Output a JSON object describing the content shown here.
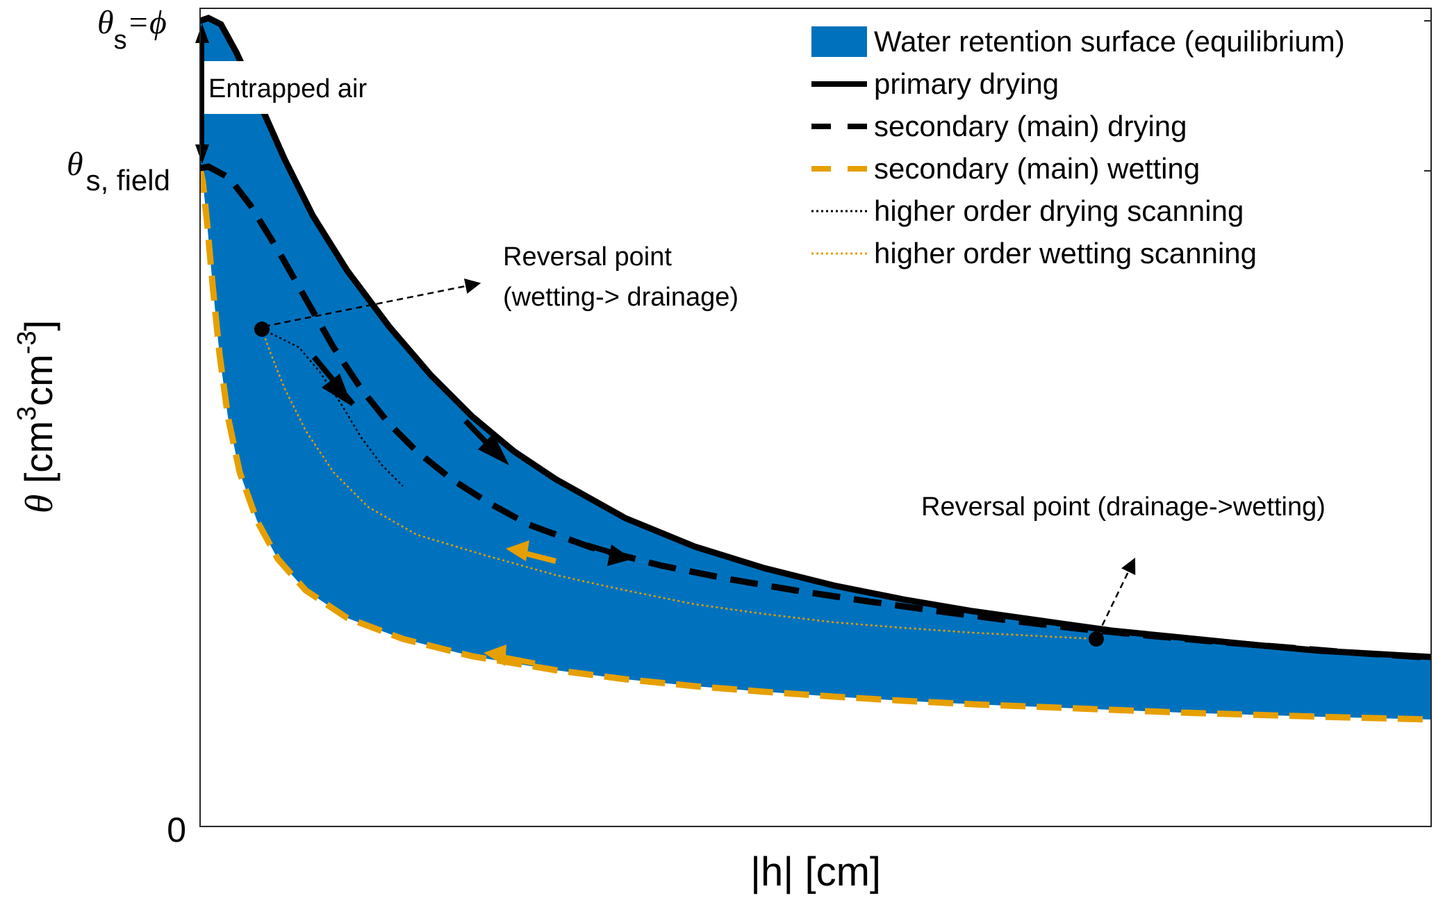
{
  "chart_data": {
    "type": "area",
    "xlabel": "|h| [cm]",
    "ylabel": {
      "symbol": "θ",
      "unit_prefix": " [cm",
      "unit_mid": "cm",
      "unit_suffix": "]",
      "exp1": "3",
      "exp2": "-3"
    },
    "y_ticks": [
      {
        "value": 0,
        "label": "0"
      }
    ],
    "y_markers": {
      "theta_s": {
        "symbol": "θ",
        "sub": "s",
        "rest": "=ϕ"
      },
      "theta_s_field": {
        "symbol": "θ",
        "sub": "s, field"
      }
    },
    "grid": false,
    "legend_placement": "top-right",
    "legend": [
      {
        "key": "surface",
        "label": "Water retention surface (equilibrium)",
        "style": "patch",
        "color": "#0072BD"
      },
      {
        "key": "primary",
        "label": "primary drying",
        "style": "solid",
        "color": "#000000"
      },
      {
        "key": "main_drying",
        "label": "secondary (main) drying",
        "style": "dashed",
        "color": "#000000"
      },
      {
        "key": "main_wetting",
        "label": "secondary (main) wetting",
        "style": "dashed",
        "color": "#E69F00"
      },
      {
        "key": "scan_drying",
        "label": "higher order drying scanning",
        "style": "dotted",
        "color": "#000000"
      },
      {
        "key": "scan_wetting",
        "label": "higher order wetting scanning",
        "style": "dotted",
        "color": "#E69F00"
      }
    ],
    "annotations": {
      "entrapped_air": "Entrapped air",
      "reversal_1_line1": "Reversal point",
      "reversal_1_line2": "(wetting-> drainage)",
      "reversal_2": "Reversal point (drainage->wetting)"
    }
  }
}
